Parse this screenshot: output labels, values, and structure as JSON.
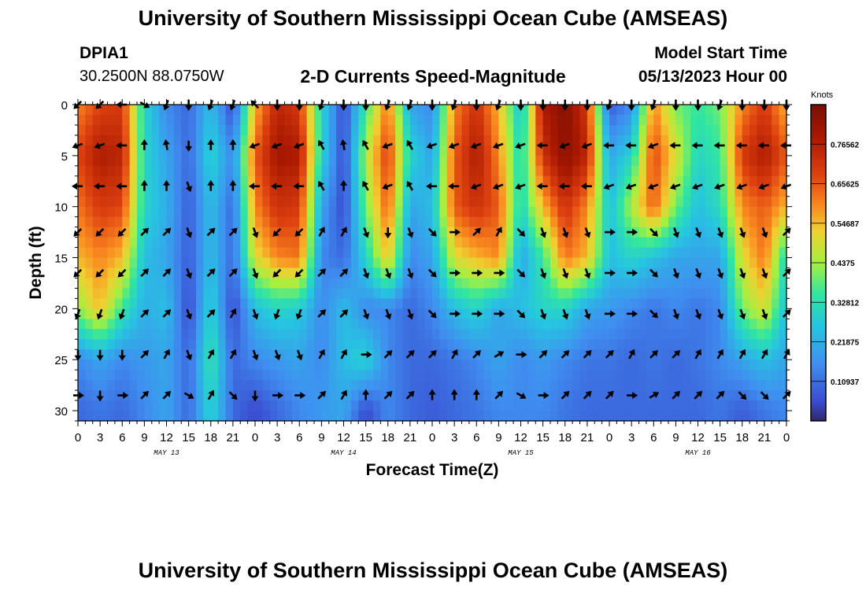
{
  "header": {
    "title": "University of Southern Mississippi Ocean Cube (AMSEAS)",
    "station_id": "DPIA1",
    "coordinates": "30.2500N  88.0750W",
    "subtitle": "2-D Currents Speed-Magnitude",
    "model_start_label": "Model Start Time",
    "model_start_value": "05/13/2023 Hour 00"
  },
  "footer": {
    "title": "University of Southern Mississippi Ocean Cube (AMSEAS)"
  },
  "colors": {
    "low": "#3a3fc4",
    "mid": "#38d8a0",
    "high": "#8a1100"
  },
  "chart_data": {
    "type": "heatmap",
    "title": "2-D Currents Speed-Magnitude",
    "xlabel": "Forecast Time(Z)",
    "ylabel": "Depth (ft)",
    "xlim": [
      0,
      96
    ],
    "ylim": [
      31,
      0
    ],
    "x_tick_labels": [
      "0",
      "3",
      "6",
      "9",
      "12",
      "15",
      "18",
      "21",
      "0",
      "3",
      "6",
      "9",
      "12",
      "15",
      "18",
      "21",
      "0",
      "3",
      "6",
      "9",
      "12",
      "15",
      "18",
      "21",
      "0",
      "3",
      "6",
      "9",
      "12",
      "15",
      "18",
      "21",
      "0"
    ],
    "y_ticks": [
      0,
      5,
      10,
      15,
      20,
      25,
      30
    ],
    "date_labels": [
      "MAY 13",
      "MAY 14",
      "MAY 15",
      "MAY 16"
    ],
    "colorbar": {
      "unit": "Knots",
      "range": [
        0,
        0.875
      ],
      "tick_values": [
        0.76562,
        0.65625,
        0.54687,
        0.4375,
        0.32812,
        0.21875,
        0.10937
      ],
      "tick_labels": [
        "0.76562",
        "0.65625",
        "0.54687",
        "0.4375",
        "0.32812",
        "0.21875",
        "0.10937"
      ]
    },
    "hours": [
      0,
      3,
      6,
      9,
      12,
      15,
      18,
      21,
      24,
      27,
      30,
      33,
      36,
      39,
      42,
      45,
      48,
      51,
      54,
      57,
      60,
      63,
      66,
      69,
      72,
      75,
      78,
      81,
      84,
      87,
      90,
      93,
      96
    ],
    "depths": [
      0,
      5,
      10,
      15,
      20,
      25,
      30
    ],
    "speed": [
      [
        0.6,
        0.68,
        0.7,
        0.3,
        0.15,
        0.1,
        0.25,
        0.05,
        0.55,
        0.75,
        0.7,
        0.3,
        0.05,
        0.35,
        0.62,
        0.2,
        0.15,
        0.6,
        0.72,
        0.55,
        0.25,
        0.78,
        0.85,
        0.7,
        0.08,
        0.15,
        0.6,
        0.4,
        0.35,
        0.4,
        0.6,
        0.7,
        0.55
      ],
      [
        0.68,
        0.78,
        0.75,
        0.3,
        0.2,
        0.1,
        0.3,
        0.15,
        0.65,
        0.8,
        0.78,
        0.3,
        0.05,
        0.45,
        0.7,
        0.3,
        0.2,
        0.65,
        0.78,
        0.6,
        0.3,
        0.72,
        0.84,
        0.75,
        0.2,
        0.3,
        0.68,
        0.5,
        0.3,
        0.35,
        0.7,
        0.78,
        0.65
      ],
      [
        0.62,
        0.7,
        0.68,
        0.3,
        0.22,
        0.08,
        0.25,
        0.1,
        0.6,
        0.72,
        0.7,
        0.2,
        0.05,
        0.4,
        0.65,
        0.2,
        0.25,
        0.65,
        0.72,
        0.65,
        0.3,
        0.55,
        0.72,
        0.6,
        0.25,
        0.45,
        0.65,
        0.4,
        0.25,
        0.32,
        0.6,
        0.65,
        0.55
      ],
      [
        0.55,
        0.6,
        0.55,
        0.25,
        0.2,
        0.08,
        0.25,
        0.1,
        0.5,
        0.6,
        0.62,
        0.15,
        0.1,
        0.3,
        0.55,
        0.15,
        0.2,
        0.5,
        0.55,
        0.6,
        0.2,
        0.35,
        0.62,
        0.55,
        0.25,
        0.3,
        0.25,
        0.2,
        0.2,
        0.2,
        0.5,
        0.62,
        0.3
      ],
      [
        0.42,
        0.55,
        0.35,
        0.22,
        0.25,
        0.05,
        0.3,
        0.05,
        0.25,
        0.3,
        0.28,
        0.15,
        0.25,
        0.15,
        0.15,
        0.1,
        0.15,
        0.25,
        0.3,
        0.2,
        0.25,
        0.3,
        0.3,
        0.2,
        0.18,
        0.15,
        0.12,
        0.15,
        0.12,
        0.15,
        0.4,
        0.5,
        0.25
      ],
      [
        0.15,
        0.2,
        0.15,
        0.18,
        0.2,
        0.1,
        0.35,
        0.1,
        0.15,
        0.18,
        0.2,
        0.15,
        0.25,
        0.3,
        0.15,
        0.1,
        0.1,
        0.12,
        0.15,
        0.2,
        0.15,
        0.18,
        0.15,
        0.12,
        0.12,
        0.1,
        0.12,
        0.1,
        0.12,
        0.15,
        0.2,
        0.25,
        0.2
      ],
      [
        0.1,
        0.12,
        0.1,
        0.15,
        0.2,
        0.1,
        0.3,
        0.1,
        0.05,
        0.1,
        0.15,
        0.18,
        0.2,
        0.05,
        0.15,
        0.1,
        0.08,
        0.1,
        0.12,
        0.15,
        0.15,
        0.15,
        0.12,
        0.1,
        0.1,
        0.1,
        0.1,
        0.1,
        0.1,
        0.12,
        0.08,
        0.12,
        0.15
      ]
    ],
    "direction_deg": [
      [
        225,
        225,
        270,
        120,
        200,
        180,
        200,
        200,
        315,
        180,
        180,
        200,
        180,
        180,
        200,
        200,
        180,
        200,
        180,
        200,
        180,
        180,
        180,
        180,
        200,
        180,
        200,
        180,
        180,
        200,
        180,
        180,
        180
      ],
      [
        250,
        250,
        270,
        0,
        350,
        180,
        0,
        0,
        250,
        250,
        250,
        330,
        350,
        330,
        250,
        330,
        250,
        250,
        250,
        250,
        250,
        270,
        250,
        250,
        270,
        270,
        250,
        270,
        270,
        270,
        270,
        270,
        270
      ],
      [
        270,
        270,
        270,
        0,
        0,
        160,
        0,
        0,
        270,
        270,
        270,
        330,
        0,
        330,
        250,
        330,
        270,
        270,
        250,
        250,
        250,
        270,
        270,
        270,
        250,
        250,
        250,
        250,
        250,
        250,
        250,
        250,
        250
      ],
      [
        225,
        225,
        225,
        45,
        45,
        160,
        45,
        45,
        160,
        225,
        225,
        30,
        30,
        160,
        180,
        160,
        135,
        90,
        45,
        30,
        135,
        160,
        160,
        160,
        90,
        90,
        135,
        160,
        160,
        160,
        160,
        160,
        45
      ],
      [
        225,
        225,
        225,
        45,
        45,
        160,
        45,
        45,
        160,
        225,
        225,
        45,
        45,
        160,
        160,
        160,
        135,
        90,
        90,
        90,
        135,
        160,
        160,
        160,
        90,
        90,
        135,
        160,
        160,
        160,
        160,
        160,
        45
      ],
      [
        200,
        200,
        200,
        45,
        45,
        160,
        45,
        30,
        160,
        200,
        200,
        45,
        45,
        160,
        160,
        160,
        135,
        90,
        90,
        90,
        135,
        160,
        160,
        160,
        90,
        90,
        135,
        160,
        160,
        160,
        160,
        160,
        45
      ],
      [
        180,
        180,
        180,
        45,
        30,
        160,
        30,
        30,
        160,
        160,
        160,
        30,
        30,
        90,
        45,
        45,
        45,
        30,
        45,
        60,
        90,
        45,
        45,
        45,
        45,
        30,
        45,
        45,
        30,
        30,
        30,
        30,
        30
      ],
      [
        90,
        180,
        90,
        45,
        45,
        120,
        30,
        135,
        180,
        90,
        90,
        45,
        30,
        0,
        45,
        45,
        0,
        0,
        0,
        45,
        120,
        90,
        45,
        45,
        45,
        90,
        60,
        45,
        45,
        45,
        135,
        135,
        45
      ]
    ],
    "arrow_depths": [
      0,
      4,
      8,
      12.5,
      16.5,
      20.5,
      24.5,
      28.5
    ]
  }
}
